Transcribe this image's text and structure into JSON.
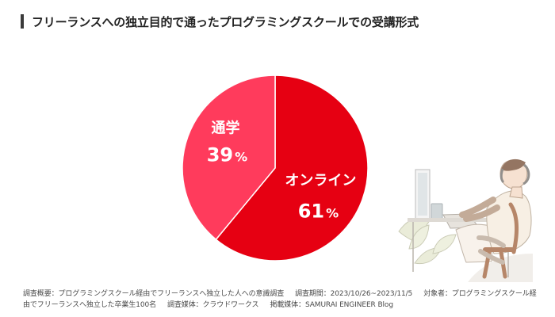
{
  "header": {
    "title": "フリーランスへの独立目的で通ったプログラミングスクールでの受講形式"
  },
  "chart_data": {
    "type": "pie",
    "title": "フリーランスへの独立目的で通ったプログラミングスクールでの受講形式",
    "slices": [
      {
        "label": "オンライン",
        "value": 61,
        "display_value": "61",
        "unit": "%",
        "color": "#e60012"
      },
      {
        "label": "通学",
        "value": 39,
        "display_value": "39",
        "unit": "%",
        "color": "#ff3b5c"
      }
    ]
  },
  "footer": {
    "line1_part1": "調査概要：プログラミングスクール経由でフリーランスへ独立した人への意識調査",
    "line1_part2": "調査期間：2023/10/26~2023/11/5",
    "line1_part3": "対象者：プログラミングスクール経",
    "line2_part1": "由でフリーランスへ独立した卒業生100名",
    "line2_part2": "調査媒体：クラウドワークス",
    "line2_part3": "掲載媒体：SAMURAI ENGINEER Blog"
  },
  "illustration": {
    "name": "person-at-computer"
  }
}
